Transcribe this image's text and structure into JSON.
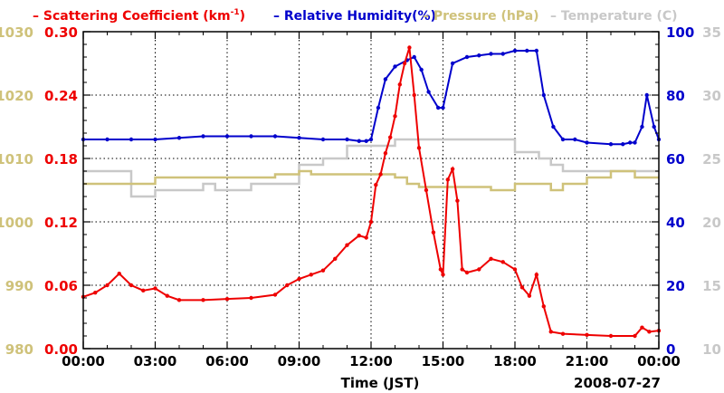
{
  "chart_data": {
    "type": "line",
    "date_label": "2008-07-27",
    "xlabel": "Time (JST)",
    "x_ticks": [
      "00:00",
      "03:00",
      "06:00",
      "09:00",
      "12:00",
      "15:00",
      "18:00",
      "21:00",
      "00:00"
    ],
    "x_range_hours": [
      0,
      24
    ],
    "legend": [
      {
        "key": "scattering",
        "prefix": "– ",
        "label": "Scattering Coefficient (km",
        "sup": "-1",
        "suffix": ")",
        "color": "#ee0000"
      },
      {
        "key": "humidity",
        "prefix": "– ",
        "label": "Relative Humidity(%)",
        "sup": "",
        "suffix": "",
        "color": "#0000cc"
      },
      {
        "key": "pressure",
        "prefix": "– ",
        "label": "Pressure (hPa)",
        "sup": "",
        "suffix": "",
        "color": "#cfc27a"
      },
      {
        "key": "temperature",
        "prefix": "– ",
        "label": "Temperature (",
        "sup": "",
        "suffix": "C)",
        "color": "#c8c8c8"
      }
    ],
    "axes": {
      "pressure": {
        "ticks": [
          "980",
          "990",
          "1000",
          "1010",
          "1020",
          "1030"
        ],
        "range": [
          980,
          1030
        ],
        "color": "#cfc27a"
      },
      "scattering": {
        "ticks": [
          "0.00",
          "0.06",
          "0.12",
          "0.18",
          "0.24",
          "0.30"
        ],
        "range": [
          0,
          0.3
        ],
        "color": "#ee0000"
      },
      "humidity": {
        "ticks": [
          "0",
          "20",
          "40",
          "60",
          "80",
          "100"
        ],
        "range": [
          0,
          100
        ],
        "color": "#0000cc"
      },
      "temperature": {
        "ticks": [
          "10",
          "15",
          "20",
          "25",
          "30",
          "35"
        ],
        "range": [
          10,
          35
        ],
        "color": "#c8c8c8"
      }
    },
    "series": [
      {
        "name": "Scattering Coefficient",
        "axis": "scattering",
        "color": "#ee0000",
        "style": "points",
        "x": [
          0,
          0.5,
          1.0,
          1.5,
          2.0,
          2.5,
          3.0,
          3.5,
          4.0,
          5.0,
          6.0,
          7.0,
          8.0,
          8.5,
          9.0,
          9.5,
          10.0,
          10.5,
          11.0,
          11.5,
          11.8,
          12.0,
          12.2,
          12.4,
          12.6,
          12.8,
          13.0,
          13.2,
          13.4,
          13.6,
          13.8,
          14.0,
          14.3,
          14.6,
          14.9,
          15.0,
          15.2,
          15.4,
          15.6,
          15.8,
          16.0,
          16.5,
          17.0,
          17.5,
          18.0,
          18.3,
          18.6,
          18.9,
          19.2,
          19.5,
          20.0,
          21.0,
          22.0,
          23.0,
          23.3,
          23.6,
          24.0
        ],
        "y": [
          0.049,
          0.053,
          0.06,
          0.071,
          0.06,
          0.055,
          0.057,
          0.05,
          0.046,
          0.046,
          0.047,
          0.048,
          0.051,
          0.06,
          0.066,
          0.07,
          0.074,
          0.085,
          0.098,
          0.107,
          0.105,
          0.12,
          0.155,
          0.165,
          0.185,
          0.2,
          0.22,
          0.25,
          0.27,
          0.285,
          0.24,
          0.19,
          0.15,
          0.11,
          0.075,
          0.07,
          0.16,
          0.17,
          0.14,
          0.075,
          0.072,
          0.075,
          0.085,
          0.082,
          0.075,
          0.058,
          0.05,
          0.07,
          0.04,
          0.016,
          0.014,
          0.013,
          0.012,
          0.012,
          0.02,
          0.016,
          0.017
        ]
      },
      {
        "name": "Relative Humidity",
        "axis": "humidity",
        "color": "#0000cc",
        "style": "points",
        "x": [
          0,
          1,
          2,
          3,
          4,
          5,
          6,
          7,
          8,
          9,
          10,
          11,
          11.5,
          11.8,
          12.0,
          12.3,
          12.6,
          13.0,
          13.5,
          13.8,
          14.1,
          14.4,
          14.8,
          15.0,
          15.4,
          16.0,
          16.5,
          17.0,
          17.5,
          18.0,
          18.5,
          18.9,
          19.2,
          19.6,
          20.0,
          20.5,
          21.0,
          22.0,
          22.5,
          22.8,
          23.0,
          23.3,
          23.5,
          23.8,
          24.0
        ],
        "y": [
          66,
          66,
          66,
          66,
          66.5,
          67,
          67,
          67,
          67,
          66.5,
          66,
          66,
          65.5,
          65.5,
          66,
          76,
          85,
          89,
          91,
          92,
          88,
          81,
          76,
          76,
          90,
          92,
          92.5,
          93,
          93,
          94,
          94,
          94,
          80,
          70,
          66,
          66,
          65,
          64.5,
          64.5,
          65,
          65,
          70,
          80,
          70,
          66
        ]
      },
      {
        "name": "Pressure",
        "axis": "pressure",
        "color": "#cfc27a",
        "style": "step",
        "x": [
          0,
          2,
          3,
          5,
          6,
          8,
          9,
          9.5,
          12,
          13,
          13.5,
          14,
          14.5,
          15,
          16,
          17,
          18,
          19,
          19.5,
          20,
          21,
          22,
          23,
          24
        ],
        "y": [
          1006,
          1006,
          1007,
          1007,
          1007,
          1007.5,
          1008,
          1007.5,
          1007.5,
          1007,
          1006,
          1005.5,
          1005.5,
          1005.5,
          1005.5,
          1005,
          1006,
          1006,
          1005,
          1006,
          1007,
          1008,
          1007,
          1007
        ]
      },
      {
        "name": "Temperature",
        "axis": "temperature",
        "color": "#c8c8c8",
        "style": "step",
        "x": [
          0,
          1,
          2,
          3,
          5,
          5.5,
          6,
          7,
          8,
          9,
          10,
          11,
          12,
          13,
          14,
          15,
          16,
          17,
          18,
          19,
          19.5,
          20,
          21,
          22,
          23,
          24
        ],
        "y": [
          24,
          24,
          22,
          22.5,
          23,
          22.5,
          22.5,
          23,
          23,
          24.5,
          25,
          26,
          26,
          26.5,
          26.5,
          26.5,
          26.5,
          26.5,
          25.5,
          25,
          24.5,
          24,
          24,
          24,
          24,
          24
        ]
      }
    ]
  }
}
